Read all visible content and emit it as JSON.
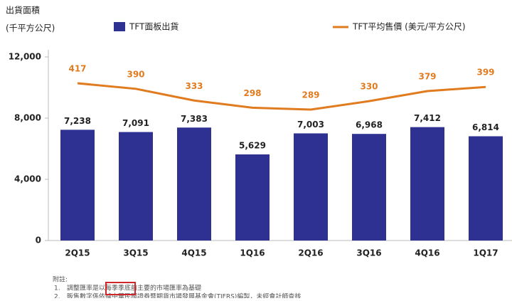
{
  "chart_data": {
    "type": "bar-line",
    "y_label": [
      "出貨面積",
      "(千平方公尺)"
    ],
    "categories": [
      "2Q15",
      "3Q15",
      "4Q15",
      "1Q16",
      "2Q16",
      "3Q16",
      "4Q16",
      "1Q17"
    ],
    "series": [
      {
        "name": "TFT面板出貨",
        "type": "bar",
        "color": "#2e3192",
        "values": [
          7238,
          7091,
          7383,
          5629,
          7003,
          6968,
          7412,
          6814
        ],
        "value_labels": [
          "7,238",
          "7,091",
          "7,383",
          "5,629",
          "7,003",
          "6,968",
          "7,412",
          "6,814"
        ]
      },
      {
        "name": "TFT平均售價 (美元/平方公尺)",
        "type": "line",
        "color": "#e07b1f",
        "values": [
          417,
          390,
          333,
          298,
          289,
          330,
          379,
          399
        ]
      }
    ],
    "ylim": [
      0,
      12000
    ],
    "yticks": [
      {
        "value": 0,
        "label": "0"
      },
      {
        "value": 4000,
        "label": "4,000"
      },
      {
        "value": 8000,
        "label": "8,000"
      },
      {
        "value": 12000,
        "label": "12,000"
      }
    ],
    "grid": false,
    "notes": {
      "title": "附註:",
      "items": [
        [
          "1.",
          "調整匯率是以每季季底前主要的市場匯率為基礎"
        ],
        [
          "2.",
          "販售數字係依據中華民國證券暨期貨市場發展基金會(TIFRS)編製，未經會計師查核"
        ]
      ]
    }
  }
}
